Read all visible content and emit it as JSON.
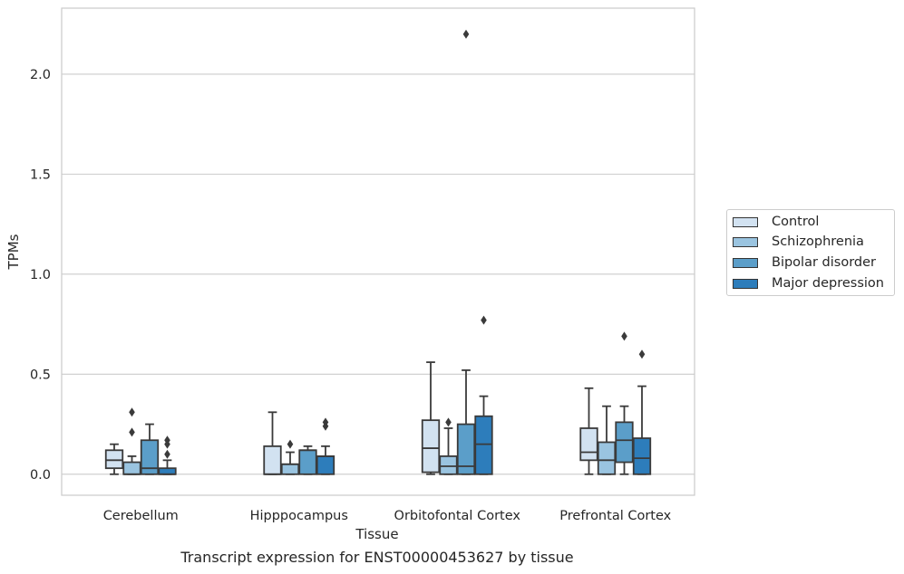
{
  "chart_data": {
    "type": "box",
    "title": "",
    "caption": "Transcript expression for ENST00000453627 by tissue",
    "xlabel": "Tissue",
    "ylabel": "TPMs",
    "ylim": [
      -0.105,
      2.33
    ],
    "yticks": [
      0.0,
      0.5,
      1.0,
      1.5,
      2.0
    ],
    "ytick_labels": [
      "0.0",
      "0.5",
      "1.0",
      "1.5",
      "2.0"
    ],
    "grid": "horizontal",
    "legend_position": "right",
    "categories": [
      "Cerebellum",
      "Hipppocampus",
      "Orbitofontal Cortex",
      "Prefrontal Cortex"
    ],
    "series": [
      {
        "name": "Control",
        "color": "#d2e2f1",
        "boxes": [
          {
            "whislo": 0.0,
            "q1": 0.03,
            "med": 0.07,
            "q3": 0.12,
            "whishi": 0.15,
            "fliers": []
          },
          {
            "whislo": 0.0,
            "q1": 0.0,
            "med": 0.0,
            "q3": 0.14,
            "whishi": 0.31,
            "fliers": []
          },
          {
            "whislo": 0.0,
            "q1": 0.01,
            "med": 0.13,
            "q3": 0.27,
            "whishi": 0.56,
            "fliers": []
          },
          {
            "whislo": 0.0,
            "q1": 0.07,
            "med": 0.11,
            "q3": 0.23,
            "whishi": 0.43,
            "fliers": []
          }
        ]
      },
      {
        "name": "Schizophrenia",
        "color": "#9ac4e0",
        "boxes": [
          {
            "whislo": 0.0,
            "q1": 0.0,
            "med": 0.0,
            "q3": 0.06,
            "whishi": 0.09,
            "fliers": [
              0.21,
              0.31
            ]
          },
          {
            "whislo": 0.0,
            "q1": 0.0,
            "med": 0.05,
            "q3": 0.05,
            "whishi": 0.11,
            "fliers": [
              0.15
            ]
          },
          {
            "whislo": 0.0,
            "q1": 0.0,
            "med": 0.04,
            "q3": 0.09,
            "whishi": 0.23,
            "fliers": [
              0.26
            ]
          },
          {
            "whislo": 0.0,
            "q1": 0.0,
            "med": 0.07,
            "q3": 0.16,
            "whishi": 0.34,
            "fliers": []
          }
        ]
      },
      {
        "name": "Bipolar disorder",
        "color": "#5b9ec9",
        "boxes": [
          {
            "whislo": 0.0,
            "q1": 0.0,
            "med": 0.03,
            "q3": 0.17,
            "whishi": 0.25,
            "fliers": []
          },
          {
            "whislo": 0.0,
            "q1": 0.0,
            "med": 0.12,
            "q3": 0.12,
            "whishi": 0.14,
            "fliers": []
          },
          {
            "whislo": 0.0,
            "q1": 0.0,
            "med": 0.04,
            "q3": 0.25,
            "whishi": 0.52,
            "fliers": [
              2.2
            ]
          },
          {
            "whislo": 0.0,
            "q1": 0.06,
            "med": 0.17,
            "q3": 0.26,
            "whishi": 0.34,
            "fliers": [
              0.69
            ]
          }
        ]
      },
      {
        "name": "Major depression",
        "color": "#2d7dbb",
        "boxes": [
          {
            "whislo": 0.0,
            "q1": 0.0,
            "med": 0.0,
            "q3": 0.03,
            "whishi": 0.07,
            "fliers": [
              0.1,
              0.15,
              0.17
            ]
          },
          {
            "whislo": 0.0,
            "q1": 0.0,
            "med": 0.09,
            "q3": 0.09,
            "whishi": 0.14,
            "fliers": [
              0.24,
              0.26
            ]
          },
          {
            "whislo": 0.0,
            "q1": 0.0,
            "med": 0.15,
            "q3": 0.29,
            "whishi": 0.39,
            "fliers": [
              0.77
            ]
          },
          {
            "whislo": 0.0,
            "q1": 0.0,
            "med": 0.08,
            "q3": 0.18,
            "whishi": 0.44,
            "fliers": [
              0.6
            ]
          }
        ]
      }
    ]
  }
}
